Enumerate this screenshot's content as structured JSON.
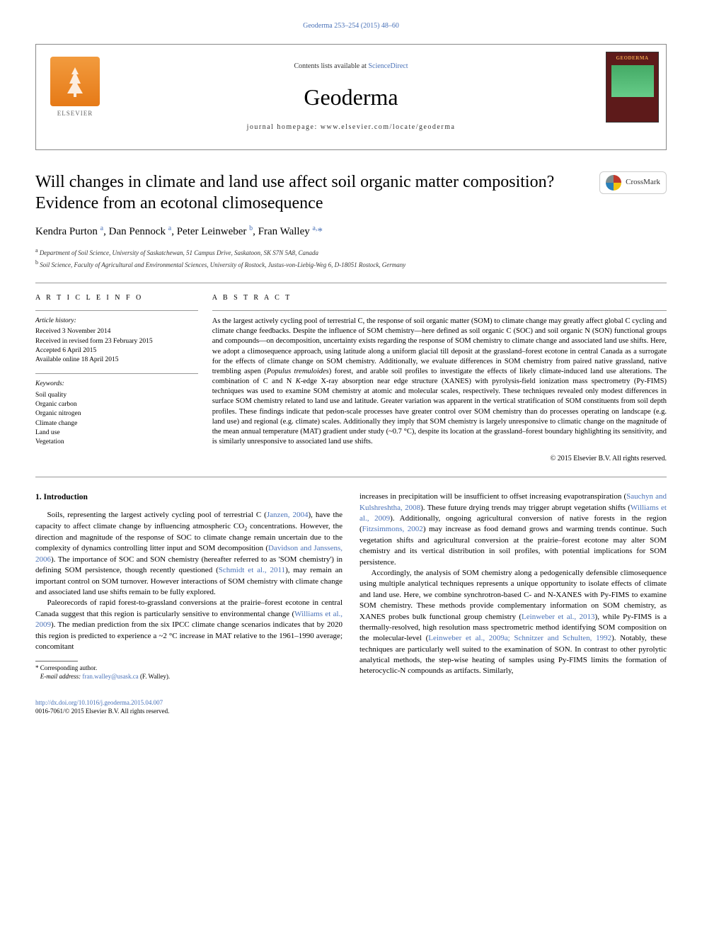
{
  "page_header_link": "Geoderma 253–254 (2015) 48–60",
  "header": {
    "contents_prefix": "Contents lists available at ",
    "contents_link": "ScienceDirect",
    "journal_name": "Geoderma",
    "homepage_prefix": "journal homepage: ",
    "homepage_url": "www.elsevier.com/locate/geoderma",
    "elsevier_label": "ELSEVIER",
    "cover_title": "GEODERMA"
  },
  "crossmark_label": "CrossMark",
  "title": "Will changes in climate and land use affect soil organic matter composition? Evidence from an ecotonal climosequence",
  "authors_html": "Kendra Purton <sup>a</sup>, Dan Pennock <sup>a</sup>, Peter Leinweber <sup>b</sup>, Fran Walley <sup>a,</sup><span class='star'>*</span>",
  "affiliations": {
    "a": "Department of Soil Science, University of Saskatchewan, 51 Campus Drive, Saskatoon, SK S7N 5A8, Canada",
    "b": "Soil Science, Faculty of Agricultural and Environmental Sciences, University of Rostock, Justus-von-Liebig-Weg 6, D-18051 Rostock, Germany"
  },
  "article_info": {
    "heading": "A R T I C L E   I N F O",
    "history_label": "Article history:",
    "history": [
      "Received 3 November 2014",
      "Received in revised form 23 February 2015",
      "Accepted 6 April 2015",
      "Available online 18 April 2015"
    ],
    "keywords_label": "Keywords:",
    "keywords": [
      "Soil quality",
      "Organic carbon",
      "Organic nitrogen",
      "Climate change",
      "Land use",
      "Vegetation"
    ]
  },
  "abstract": {
    "heading": "A B S T R A C T",
    "text_html": "As the largest actively cycling pool of terrestrial C, the response of soil organic matter (SOM) to climate change may greatly affect global C cycling and climate change feedbacks. Despite the influence of SOM chemistry—here defined as soil organic C (SOC) and soil organic N (SON) functional groups and compounds—on decomposition, uncertainty exists regarding the response of SOM chemistry to climate change and associated land use shifts. Here, we adopt a climosequence approach, using latitude along a uniform glacial till deposit at the grassland–forest ecotone in central Canada as a surrogate for the effects of climate change on SOM chemistry. Additionally, we evaluate differences in SOM chemistry from paired native grassland, native trembling aspen (<i>Populus tremuloides</i>) forest, and arable soil profiles to investigate the effects of likely climate-induced land use alterations. The combination of C and N <i>K</i>-edge X-ray absorption near edge structure (XANES) with pyrolysis-field ionization mass spectrometry (Py-FIMS) techniques was used to examine SOM chemistry at atomic and molecular scales, respectively. These techniques revealed only modest differences in surface SOM chemistry related to land use and latitude. Greater variation was apparent in the vertical stratification of SOM constituents from soil depth profiles. These findings indicate that pedon-scale processes have greater control over SOM chemistry than do processes operating on landscape (e.g. land use) and regional (e.g. climate) scales. Additionally they imply that SOM chemistry is largely unresponsive to climatic change on the magnitude of the mean annual temperature (MAT) gradient under study (~0.7 °C), despite its location at the grassland–forest boundary highlighting its sensitivity, and is similarly unresponsive to associated land use shifts.",
    "copyright": "© 2015 Elsevier B.V. All rights reserved."
  },
  "introduction": {
    "heading": "1. Introduction",
    "p1_html": "Soils, representing the largest actively cycling pool of terrestrial C (<span class='ref'>Janzen, 2004</span>), have the capacity to affect climate change by influencing atmospheric CO<span class='sub'>2</span> concentrations. However, the direction and magnitude of the response of SOC to climate change remain uncertain due to the complexity of dynamics controlling litter input and SOM decomposition (<span class='ref'>Davidson and Janssens, 2006</span>). The importance of SOC and SON chemistry (hereafter referred to as 'SOM chemistry') in defining SOM persistence, though recently questioned (<span class='ref'>Schmidt et al., 2011</span>), may remain an important control on SOM turnover. However interactions of SOM chemistry with climate change and associated land use shifts remain to be fully explored.",
    "p2_html": "Paleorecords of rapid forest-to-grassland conversions at the prairie–forest ecotone in central Canada suggest that this region is particularly sensitive to environmental change (<span class='ref'>Williams et al., 2009</span>). The median prediction from the six IPCC climate change scenarios indicates that by 2020 this region is predicted to experience a ~2 °C increase in MAT relative to the 1961–1990 average; concomitant",
    "p3_html": "increases in precipitation will be insufficient to offset increasing evapotranspiration (<span class='ref'>Sauchyn and Kulshreshtha, 2008</span>). These future drying trends may trigger abrupt vegetation shifts (<span class='ref'>Williams et al., 2009</span>). Additionally, ongoing agricultural conversion of native forests in the region (<span class='ref'>Fitzsimmons, 2002</span>) may increase as food demand grows and warming trends continue. Such vegetation shifts and agricultural conversion at the prairie–forest ecotone may alter SOM chemistry and its vertical distribution in soil profiles, with potential implications for SOM persistence.",
    "p4_html": "Accordingly, the analysis of SOM chemistry along a pedogenically defensible climosequence using multiple analytical techniques represents a unique opportunity to isolate effects of climate and land use. Here, we combine synchrotron-based C- and N-XANES with Py-FIMS to examine SOM chemistry. These methods provide complementary information on SOM chemistry, as XANES probes bulk functional group chemistry (<span class='ref'>Leinweber et al., 2013</span>), while Py-FIMS is a thermally-resolved, high resolution mass spectrometric method identifying SOM composition on the molecular-level (<span class='ref'>Leinweber et al., 2009a; Schnitzer and Schulten, 1992</span>). Notably, these techniques are particularly well suited to the examination of SON. In contrast to other pyrolytic analytical methods, the step-wise heating of samples using Py-FIMS limits the formation of heterocyclic-N compounds as artifacts. Similarly,"
  },
  "footnote": {
    "corresponding": "Corresponding author.",
    "email_label": "E-mail address:",
    "email": "fran.walley@usask.ca",
    "email_name": "(F. Walley)."
  },
  "footer": {
    "doi": "http://dx.doi.org/10.1016/j.geoderma.2015.04.007",
    "issn_line": "0016-7061/© 2015 Elsevier B.V. All rights reserved."
  },
  "colors": {
    "link": "#4A72B8",
    "text": "#000000",
    "elsevier_orange": "#e67a17",
    "cover_bg": "#5d1a1a",
    "cover_title": "#e8a04c"
  }
}
